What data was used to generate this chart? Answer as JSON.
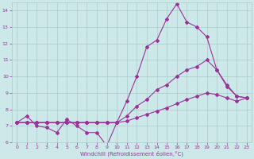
{
  "xlabel": "Windchill (Refroidissement éolien,°C)",
  "background_color": "#cce8e8",
  "grid_color": "#aacccc",
  "line_color": "#993399",
  "xlim": [
    -0.5,
    23.5
  ],
  "ylim": [
    6,
    14.5
  ],
  "xticks": [
    0,
    1,
    2,
    3,
    4,
    5,
    6,
    7,
    8,
    9,
    10,
    11,
    12,
    13,
    14,
    15,
    16,
    17,
    18,
    19,
    20,
    21,
    22,
    23
  ],
  "yticks": [
    6,
    7,
    8,
    9,
    10,
    11,
    12,
    13,
    14
  ],
  "series_noisy_x": [
    0,
    1,
    2,
    3,
    4,
    5,
    6,
    7,
    8,
    9,
    10
  ],
  "series_noisy_y": [
    7.2,
    7.6,
    7.0,
    6.9,
    6.6,
    7.4,
    7.0,
    6.6,
    6.6,
    5.8,
    7.2
  ],
  "series_high_x": [
    0,
    1,
    2,
    3,
    4,
    5,
    6,
    7,
    8,
    9,
    10,
    11,
    12,
    13,
    14,
    15,
    16,
    17,
    18,
    19,
    20,
    21,
    22,
    23
  ],
  "series_high_y": [
    7.2,
    7.2,
    7.2,
    7.2,
    7.2,
    7.2,
    7.2,
    7.2,
    7.2,
    7.2,
    7.2,
    8.5,
    10.0,
    11.8,
    12.2,
    13.5,
    14.4,
    13.3,
    13.0,
    12.4,
    10.4,
    9.4,
    8.8,
    8.7
  ],
  "series_mid_x": [
    0,
    1,
    2,
    3,
    4,
    5,
    6,
    7,
    8,
    9,
    10,
    11,
    12,
    13,
    14,
    15,
    16,
    17,
    18,
    19,
    20,
    21,
    22,
    23
  ],
  "series_mid_y": [
    7.2,
    7.2,
    7.2,
    7.2,
    7.2,
    7.2,
    7.2,
    7.2,
    7.2,
    7.2,
    7.2,
    7.6,
    8.2,
    8.6,
    9.2,
    9.5,
    10.0,
    10.4,
    10.6,
    11.0,
    10.4,
    9.5,
    8.8,
    8.7
  ],
  "series_low_x": [
    0,
    1,
    2,
    3,
    4,
    5,
    6,
    7,
    8,
    9,
    10,
    11,
    12,
    13,
    14,
    15,
    16,
    17,
    18,
    19,
    20,
    21,
    22,
    23
  ],
  "series_low_y": [
    7.2,
    7.2,
    7.2,
    7.2,
    7.2,
    7.2,
    7.2,
    7.2,
    7.2,
    7.2,
    7.2,
    7.3,
    7.5,
    7.7,
    7.9,
    8.1,
    8.35,
    8.6,
    8.8,
    9.0,
    8.9,
    8.7,
    8.5,
    8.7
  ]
}
